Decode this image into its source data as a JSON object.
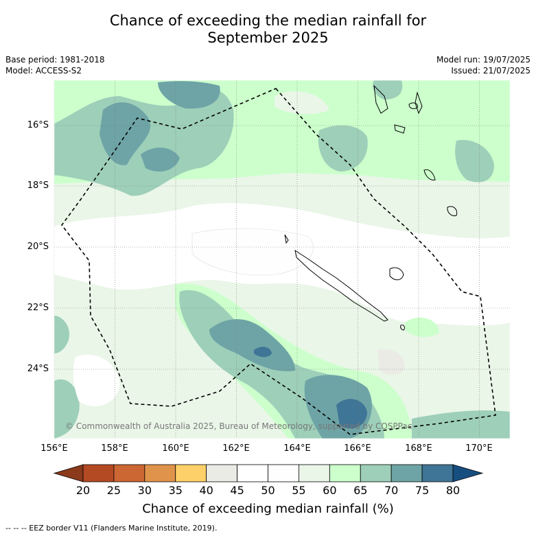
{
  "title": {
    "line1": "Chance of exceeding the median rainfall for",
    "line2": "September 2025"
  },
  "meta_left": {
    "base_period": "Base period: 1981-2018",
    "model": "Model: ACCESS-S2"
  },
  "meta_right": {
    "model_run": "Model run: 19/07/2025",
    "issued": "Issued: 21/07/2025"
  },
  "lat_labels": [
    "16°S",
    "18°S",
    "20°S",
    "22°S",
    "24°S"
  ],
  "lon_labels": [
    "156°E",
    "158°E",
    "160°E",
    "162°E",
    "164°E",
    "166°E",
    "168°E",
    "170°E"
  ],
  "credit": "© Commonwealth of Australia 2025, Bureau of Meteorology, supported by COSPPac",
  "colorbar": {
    "ticks": [
      "20",
      "25",
      "30",
      "35",
      "40",
      "45",
      "50",
      "55",
      "60",
      "65",
      "70",
      "75",
      "80"
    ],
    "colors": [
      "#b34a24",
      "#cc6633",
      "#e0934a",
      "#fdd06a",
      "#ebebe6",
      "#ffffff",
      "#fdfefd",
      "#eaf6e8",
      "#ccffcc",
      "#9ecfb9",
      "#6ea4a6",
      "#3f7596"
    ],
    "under_color": "#8b3a1c",
    "over_color": "#174e80",
    "title": "Chance of exceeding median rainfall (%)"
  },
  "legend_line": "--  --  -- EEZ border V11 (Flanders Marine Institute, 2019)."
}
